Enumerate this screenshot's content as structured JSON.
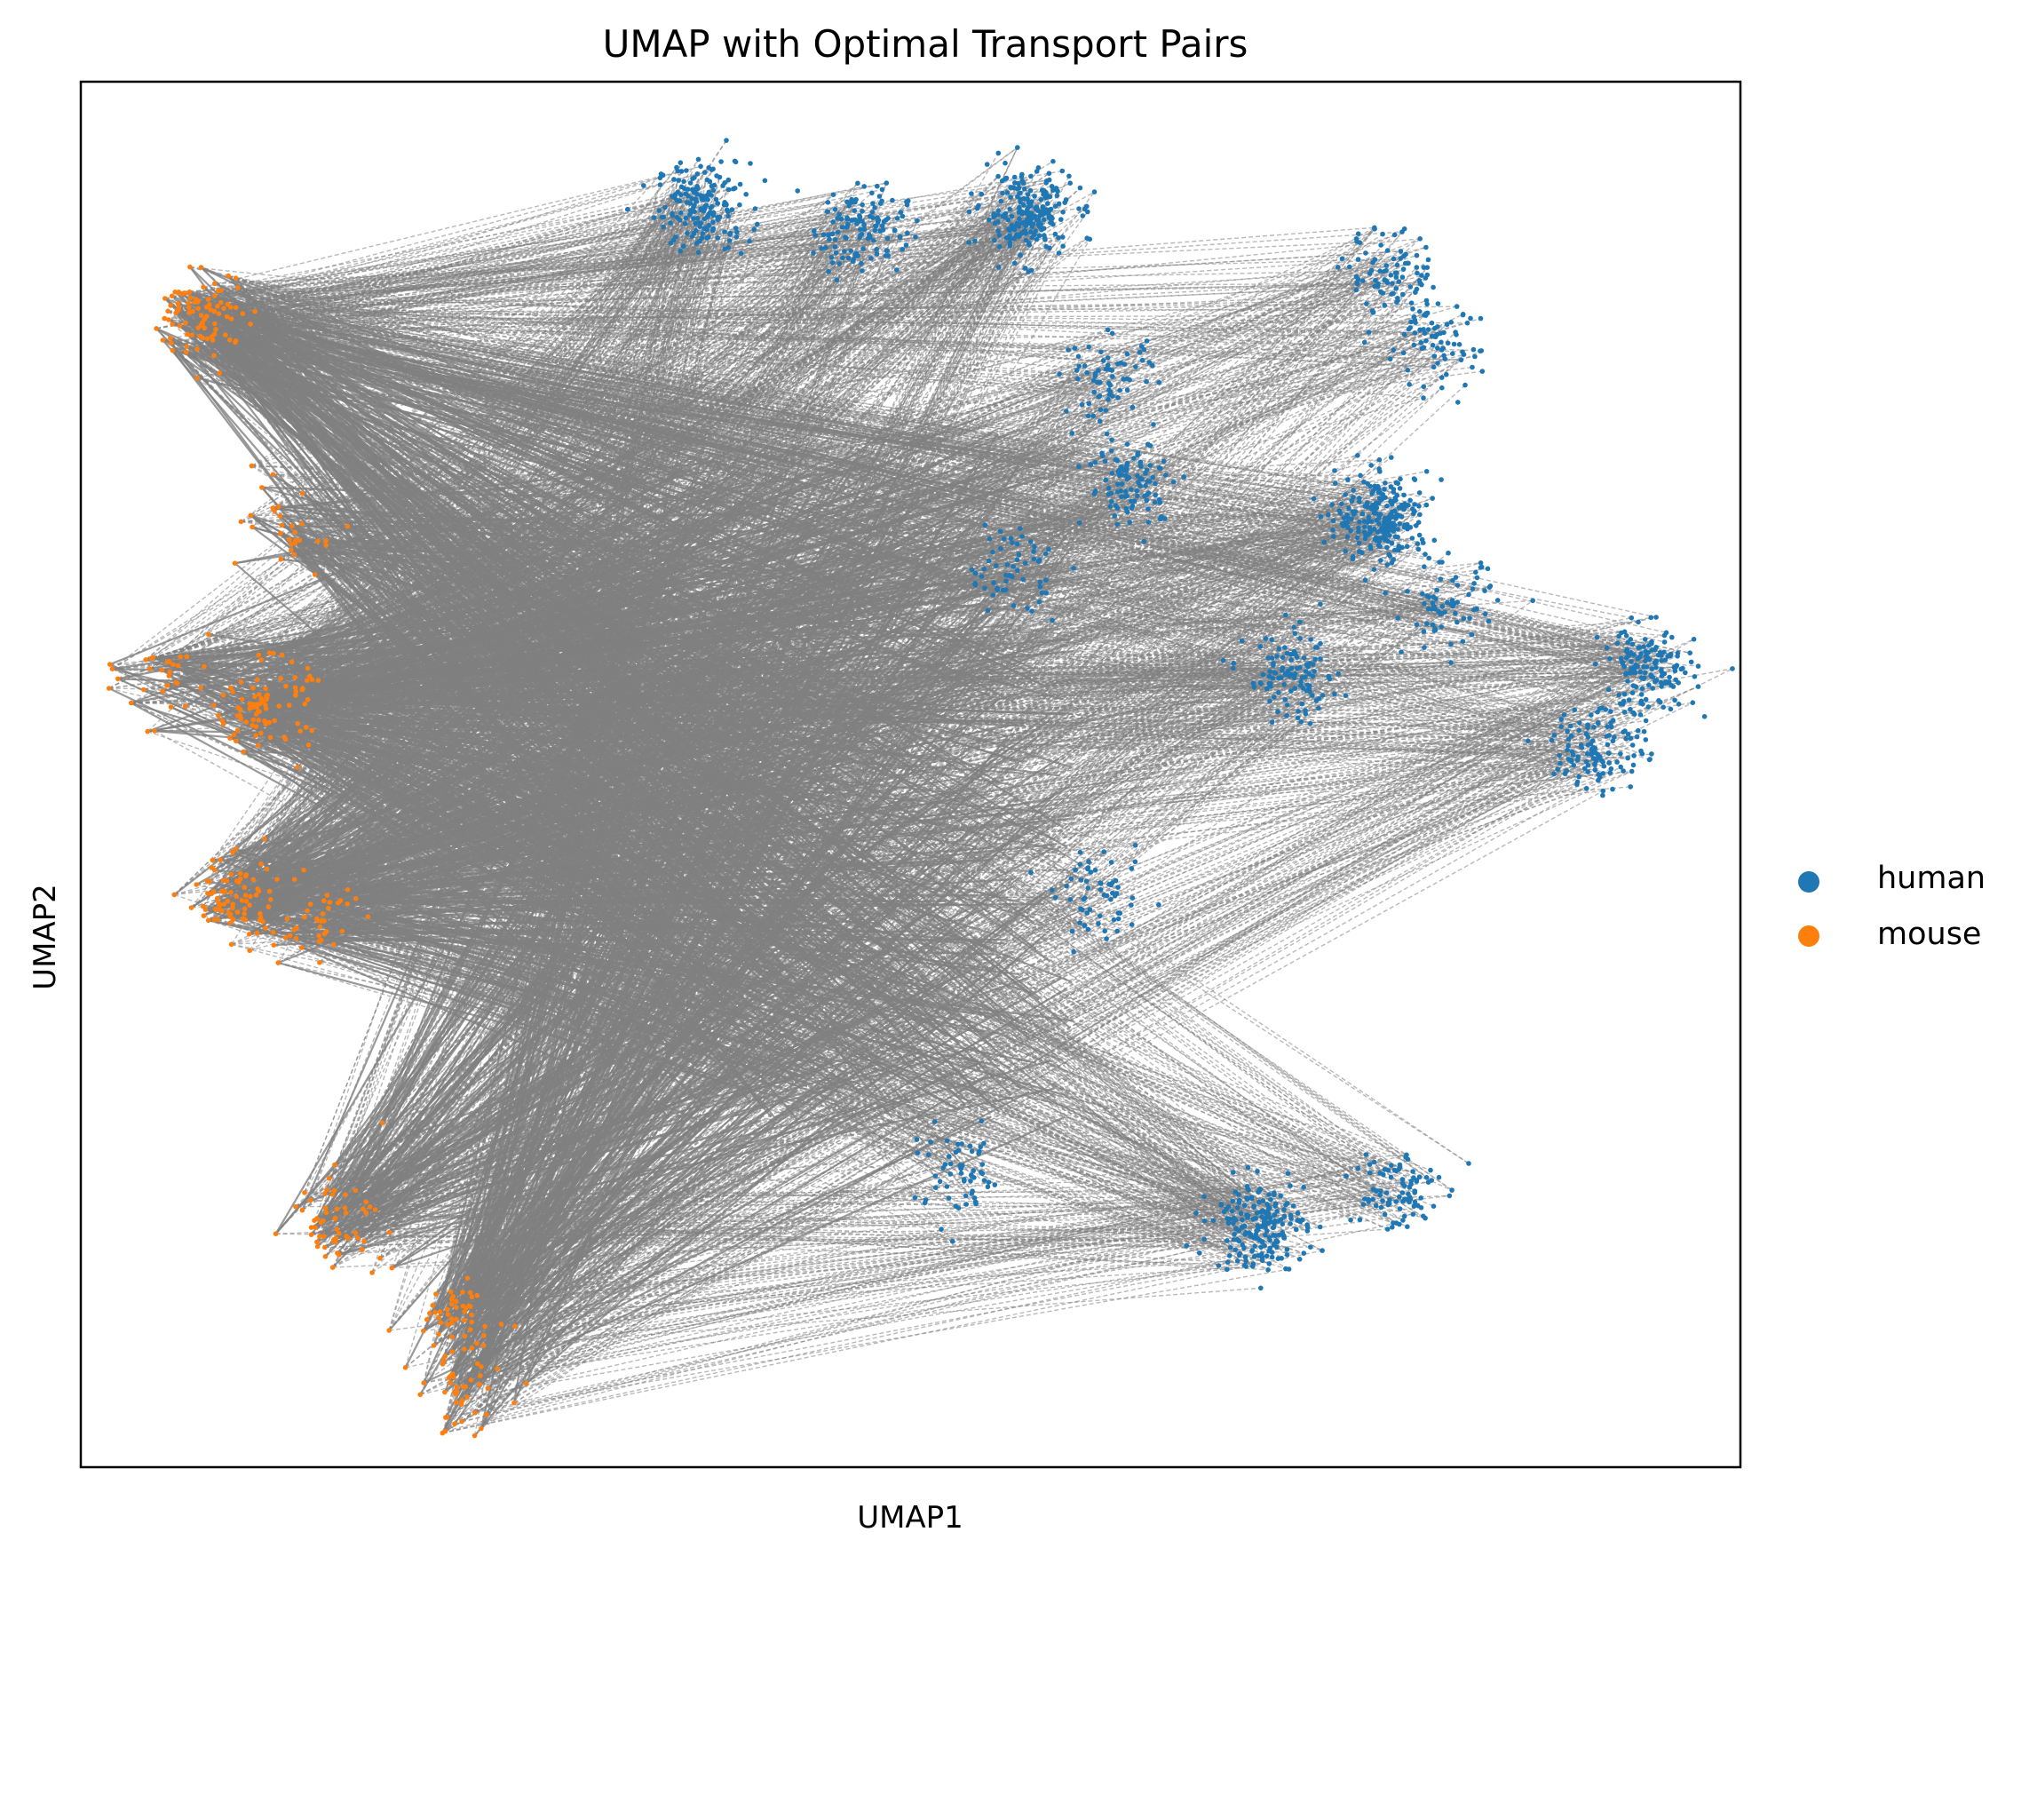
{
  "chart_data": {
    "type": "scatter",
    "title": "UMAP with Optimal Transport Pairs",
    "xlabel": "UMAP1",
    "ylabel": "UMAP2",
    "xlim": [
      0,
      10
    ],
    "ylim": [
      0,
      10
    ],
    "grid": false,
    "ticks_shown": false,
    "legend_position": "outside-right",
    "pair_line_color": "#808080",
    "pair_line_style": "dashed",
    "series": [
      {
        "name": "human",
        "color": "#1f77b4",
        "clusters": [
          {
            "x": 3.75,
            "y": 9.1,
            "count": 180
          },
          {
            "x": 4.7,
            "y": 8.95,
            "count": 130
          },
          {
            "x": 5.7,
            "y": 9.05,
            "count": 220
          },
          {
            "x": 7.9,
            "y": 8.6,
            "count": 90
          },
          {
            "x": 8.15,
            "y": 8.1,
            "count": 80
          },
          {
            "x": 6.2,
            "y": 7.85,
            "count": 70
          },
          {
            "x": 6.35,
            "y": 7.1,
            "count": 100
          },
          {
            "x": 7.85,
            "y": 6.85,
            "count": 240
          },
          {
            "x": 5.6,
            "y": 6.5,
            "count": 60
          },
          {
            "x": 8.25,
            "y": 6.2,
            "count": 70
          },
          {
            "x": 7.3,
            "y": 5.7,
            "count": 110
          },
          {
            "x": 9.45,
            "y": 5.75,
            "count": 160
          },
          {
            "x": 9.15,
            "y": 5.2,
            "count": 120
          },
          {
            "x": 6.15,
            "y": 4.1,
            "count": 60
          },
          {
            "x": 5.3,
            "y": 2.1,
            "count": 60
          },
          {
            "x": 7.1,
            "y": 1.75,
            "count": 200
          },
          {
            "x": 7.9,
            "y": 2.0,
            "count": 90
          }
        ]
      },
      {
        "name": "mouse",
        "color": "#ff7f0e",
        "clusters": [
          {
            "x": 0.75,
            "y": 8.3,
            "count": 90
          },
          {
            "x": 1.25,
            "y": 6.75,
            "count": 30
          },
          {
            "x": 1.1,
            "y": 5.5,
            "count": 90
          },
          {
            "x": 0.5,
            "y": 5.7,
            "count": 30
          },
          {
            "x": 0.9,
            "y": 4.1,
            "count": 80
          },
          {
            "x": 1.4,
            "y": 3.9,
            "count": 40
          },
          {
            "x": 1.55,
            "y": 1.8,
            "count": 60
          },
          {
            "x": 2.25,
            "y": 1.05,
            "count": 50
          },
          {
            "x": 2.3,
            "y": 0.55,
            "count": 40
          }
        ]
      }
    ]
  }
}
